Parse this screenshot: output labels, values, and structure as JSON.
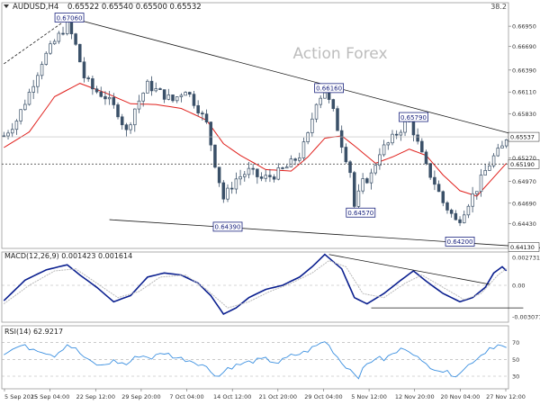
{
  "header": {
    "symbol": "AUDUSD,H4",
    "ohlc": "0.65522 0.65540 0.65500 0.65532",
    "corner_value": "38.2",
    "toggle_icon": "triangle-down-icon"
  },
  "watermark": "Action Forex",
  "colors": {
    "candles": "#3a5068",
    "ma": "#e0201c",
    "macd_line": "#0a1f8f",
    "macd_signal": "#b9b9b9",
    "rsi": "#3a8fe0",
    "trendline": "#1a1a1a",
    "grid": "#d8d8d8",
    "label_border": "#1a237e",
    "label_text": "#1a237e"
  },
  "chart_data": [
    {
      "type": "candlestick",
      "title": "AUDUSD,H4",
      "x_ticks": [
        "5 Sep 2025",
        "15 Sep 04:00",
        "22 Sep 12:00",
        "29 Sep 20:00",
        "7 Oct 04:00",
        "14 Oct 12:00",
        "21 Oct 20:00",
        "29 Oct 04:00",
        "5 Nov 12:00",
        "12 Nov 20:00",
        "20 Nov 04:00",
        "27 Nov 12:00"
      ],
      "y_ticks": [
        0.6695,
        0.6669,
        0.6639,
        0.6611,
        0.6583,
        0.6527,
        0.6497,
        0.6469,
        0.6443
      ],
      "ylim": [
        0.64113,
        0.6725
      ],
      "current_price": 0.65537,
      "dotted_level": 0.6519,
      "bottom_level": 0.6413,
      "close_path": [
        [
          0,
          0.6555
        ],
        [
          3,
          0.6575
        ],
        [
          6,
          0.661
        ],
        [
          9,
          0.665
        ],
        [
          12,
          0.6675
        ],
        [
          15,
          0.6698
        ],
        [
          17,
          0.667
        ],
        [
          19,
          0.663
        ],
        [
          21,
          0.6615
        ],
        [
          24,
          0.6605
        ],
        [
          27,
          0.6585
        ],
        [
          29,
          0.656
        ],
        [
          31,
          0.659
        ],
        [
          34,
          0.662
        ],
        [
          37,
          0.661
        ],
        [
          40,
          0.66
        ],
        [
          43,
          0.6615
        ],
        [
          46,
          0.659
        ],
        [
          48,
          0.657
        ],
        [
          50,
          0.652
        ],
        [
          52,
          0.6475
        ],
        [
          55,
          0.65
        ],
        [
          58,
          0.651
        ],
        [
          61,
          0.65
        ],
        [
          64,
          0.6505
        ],
        [
          67,
          0.6515
        ],
        [
          70,
          0.653
        ],
        [
          72,
          0.6555
        ],
        [
          74,
          0.66
        ],
        [
          76,
          0.6612
        ],
        [
          78,
          0.6585
        ],
        [
          80,
          0.6545
        ],
        [
          82,
          0.651
        ],
        [
          83,
          0.6465
        ],
        [
          85,
          0.6495
        ],
        [
          87,
          0.6505
        ],
        [
          89,
          0.6535
        ],
        [
          91,
          0.6545
        ],
        [
          93,
          0.6558
        ],
        [
          95,
          0.657
        ],
        [
          96,
          0.6576
        ],
        [
          98,
          0.6545
        ],
        [
          100,
          0.6515
        ],
        [
          102,
          0.6495
        ],
        [
          104,
          0.647
        ],
        [
          106,
          0.6455
        ],
        [
          107,
          0.6446
        ],
        [
          108,
          0.645
        ],
        [
          110,
          0.647
        ],
        [
          112,
          0.6488
        ],
        [
          114,
          0.651
        ],
        [
          116,
          0.6528
        ],
        [
          118,
          0.654
        ],
        [
          119,
          0.6553
        ]
      ],
      "ma_path": [
        [
          0,
          0.654
        ],
        [
          6,
          0.656
        ],
        [
          12,
          0.6605
        ],
        [
          18,
          0.6622
        ],
        [
          24,
          0.661
        ],
        [
          30,
          0.6596
        ],
        [
          36,
          0.6595
        ],
        [
          42,
          0.659
        ],
        [
          48,
          0.6575
        ],
        [
          52,
          0.6545
        ],
        [
          56,
          0.653
        ],
        [
          62,
          0.6512
        ],
        [
          68,
          0.651
        ],
        [
          72,
          0.6528
        ],
        [
          76,
          0.6552
        ],
        [
          80,
          0.6555
        ],
        [
          84,
          0.6538
        ],
        [
          88,
          0.652
        ],
        [
          92,
          0.6528
        ],
        [
          96,
          0.6538
        ],
        [
          100,
          0.653
        ],
        [
          104,
          0.6505
        ],
        [
          108,
          0.6485
        ],
        [
          112,
          0.6478
        ],
        [
          116,
          0.6502
        ],
        [
          119,
          0.652
        ]
      ],
      "pivot_labels": [
        {
          "text": "0.67060",
          "x": 15.5,
          "value": 0.6706
        },
        {
          "text": "0.64390",
          "x": 53,
          "value": 0.6439
        },
        {
          "text": "0.66160",
          "x": 77,
          "value": 0.6616
        },
        {
          "text": "0.64570",
          "x": 84.5,
          "value": 0.6457
        },
        {
          "text": "0.65790",
          "x": 97,
          "value": 0.6579
        },
        {
          "text": "0.64200",
          "x": 108,
          "value": 0.642
        }
      ],
      "trendlines": [
        {
          "from": [
            15.5,
            0.6706
          ],
          "to": [
            120,
            0.6558
          ]
        },
        {
          "from": [
            25,
            0.6448
          ],
          "to": [
            130,
            0.6411
          ]
        },
        {
          "from": [
            0,
            0.6647
          ],
          "to": [
            15.5,
            0.6706
          ],
          "dashed": true
        }
      ]
    },
    {
      "type": "line",
      "title": "MACD(12,26,9) 0.001423 0.001614",
      "y_ticks": [
        0.002731,
        0.0,
        -0.003077
      ],
      "y_tick_labels": [
        "0.002731",
        "0.00",
        "-0.003077"
      ],
      "ylim": [
        -0.00359,
        0.00324
      ],
      "series": [
        {
          "name": "MACD",
          "points": [
            [
              0,
              -0.0015
            ],
            [
              5,
              0.0005
            ],
            [
              10,
              0.0015
            ],
            [
              15,
              0.002
            ],
            [
              18,
              0.001
            ],
            [
              22,
              -0.0002
            ],
            [
              26,
              -0.0016
            ],
            [
              30,
              -0.001
            ],
            [
              34,
              0.0008
            ],
            [
              38,
              0.0012
            ],
            [
              42,
              0.001
            ],
            [
              46,
              0.0002
            ],
            [
              49,
              -0.001
            ],
            [
              52,
              -0.0028
            ],
            [
              55,
              -0.0022
            ],
            [
              58,
              -0.0012
            ],
            [
              62,
              -0.0004
            ],
            [
              66,
              0.0
            ],
            [
              70,
              0.0008
            ],
            [
              73,
              0.0018
            ],
            [
              76,
              0.003
            ],
            [
              80,
              0.0016
            ],
            [
              83,
              -0.0012
            ],
            [
              86,
              -0.0018
            ],
            [
              90,
              -0.0008
            ],
            [
              94,
              0.0005
            ],
            [
              97,
              0.0014
            ],
            [
              100,
              0.0004
            ],
            [
              104,
              -0.0008
            ],
            [
              108,
              -0.0016
            ],
            [
              111,
              -0.0012
            ],
            [
              114,
              -0.0002
            ],
            [
              116,
              0.0012
            ],
            [
              118,
              0.0018
            ],
            [
              119,
              0.00142
            ]
          ]
        },
        {
          "name": "Signal",
          "points": [
            [
              0,
              -0.0018
            ],
            [
              6,
              0.0
            ],
            [
              12,
              0.0014
            ],
            [
              17,
              0.0016
            ],
            [
              22,
              0.0002
            ],
            [
              27,
              -0.0012
            ],
            [
              32,
              -0.0006
            ],
            [
              37,
              0.0008
            ],
            [
              43,
              0.001
            ],
            [
              48,
              -0.0004
            ],
            [
              53,
              -0.0022
            ],
            [
              58,
              -0.0016
            ],
            [
              63,
              -0.0006
            ],
            [
              68,
              0.0002
            ],
            [
              73,
              0.0012
            ],
            [
              77,
              0.0024
            ],
            [
              81,
              0.0018
            ],
            [
              85,
              -0.0008
            ],
            [
              90,
              -0.0012
            ],
            [
              95,
              0.0002
            ],
            [
              99,
              0.001
            ],
            [
              104,
              -0.0002
            ],
            [
              109,
              -0.0014
            ],
            [
              113,
              -0.0008
            ],
            [
              117,
              0.001
            ],
            [
              119,
              0.00161
            ]
          ]
        }
      ],
      "trendlines": [
        {
          "from": [
            77,
            0.003
          ],
          "to": [
            115,
            0.0001
          ]
        },
        {
          "from": [
            87,
            -0.0022
          ],
          "to": [
            123,
            -0.0022
          ]
        }
      ]
    },
    {
      "type": "line",
      "title": "RSI(14) 62.9217",
      "y_ticks": [
        70,
        50,
        30
      ],
      "ylim": [
        15,
        90
      ],
      "series": [
        {
          "name": "RSI",
          "points": [
            [
              0,
              58
            ],
            [
              4,
              66
            ],
            [
              8,
              62
            ],
            [
              12,
              55
            ],
            [
              15,
              68
            ],
            [
              17,
              62
            ],
            [
              20,
              48
            ],
            [
              23,
              42
            ],
            [
              26,
              48
            ],
            [
              29,
              44
            ],
            [
              32,
              55
            ],
            [
              35,
              52
            ],
            [
              38,
              58
            ],
            [
              41,
              52
            ],
            [
              44,
              49
            ],
            [
              47,
              44
            ],
            [
              49,
              36
            ],
            [
              51,
              30
            ],
            [
              53,
              40
            ],
            [
              56,
              44
            ],
            [
              59,
              48
            ],
            [
              62,
              50
            ],
            [
              65,
              46
            ],
            [
              68,
              54
            ],
            [
              71,
              58
            ],
            [
              74,
              66
            ],
            [
              76,
              72
            ],
            [
              78,
              60
            ],
            [
              80,
              46
            ],
            [
              82,
              38
            ],
            [
              84,
              30
            ],
            [
              86,
              44
            ],
            [
              88,
              52
            ],
            [
              90,
              50
            ],
            [
              92,
              56
            ],
            [
              95,
              64
            ],
            [
              97,
              58
            ],
            [
              99,
              46
            ],
            [
              101,
              42
            ],
            [
              103,
              38
            ],
            [
              105,
              34
            ],
            [
              107,
              32
            ],
            [
              109,
              38
            ],
            [
              111,
              48
            ],
            [
              113,
              55
            ],
            [
              115,
              64
            ],
            [
              117,
              67
            ],
            [
              119,
              62.9
            ]
          ]
        }
      ]
    }
  ]
}
